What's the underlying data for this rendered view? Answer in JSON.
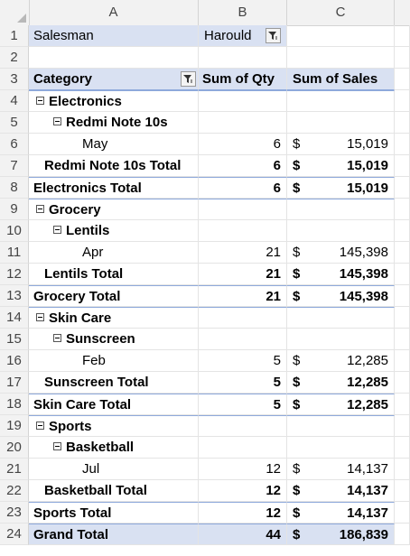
{
  "columns": [
    "A",
    "B",
    "C"
  ],
  "row_numbers": [
    "1",
    "2",
    "3",
    "4",
    "5",
    "6",
    "7",
    "8",
    "9",
    "10",
    "11",
    "12",
    "13",
    "14",
    "15",
    "16",
    "17",
    "18",
    "19",
    "20",
    "21",
    "22",
    "23",
    "24"
  ],
  "filter": {
    "label": "Salesman",
    "value": "Harould"
  },
  "headers": {
    "category": "Category",
    "qty": "Sum of Qty",
    "sales": "Sum of Sales"
  },
  "currency": "$",
  "rows": [
    {
      "label": "Electronics",
      "qty": "",
      "sales": ""
    },
    {
      "label": "Redmi Note 10s",
      "qty": "",
      "sales": ""
    },
    {
      "label": "May",
      "qty": "6",
      "sales": "15,019"
    },
    {
      "label": "Redmi Note 10s  Total",
      "qty": "6",
      "sales": "15,019"
    },
    {
      "label": "Electronics Total",
      "qty": "6",
      "sales": "15,019"
    },
    {
      "label": "Grocery",
      "qty": "",
      "sales": ""
    },
    {
      "label": "Lentils",
      "qty": "",
      "sales": ""
    },
    {
      "label": "Apr",
      "qty": "21",
      "sales": "145,398"
    },
    {
      "label": "Lentils  Total",
      "qty": "21",
      "sales": "145,398"
    },
    {
      "label": "Grocery  Total",
      "qty": "21",
      "sales": "145,398"
    },
    {
      "label": "Skin Care",
      "qty": "",
      "sales": ""
    },
    {
      "label": "Sunscreen",
      "qty": "",
      "sales": ""
    },
    {
      "label": "Feb",
      "qty": "5",
      "sales": "12,285"
    },
    {
      "label": "Sunscreen  Total",
      "qty": "5",
      "sales": "12,285"
    },
    {
      "label": "Skin Care Total",
      "qty": "5",
      "sales": "12,285"
    },
    {
      "label": "Sports",
      "qty": "",
      "sales": ""
    },
    {
      "label": "Basketball",
      "qty": "",
      "sales": ""
    },
    {
      "label": "Jul",
      "qty": "12",
      "sales": "14,137"
    },
    {
      "label": "Basketball Total",
      "qty": "12",
      "sales": "14,137"
    },
    {
      "label": "Sports Total",
      "qty": "12",
      "sales": "14,137"
    },
    {
      "label": "Grand Total",
      "qty": "44",
      "sales": "186,839"
    }
  ],
  "icons": {
    "collapse": "minus-box-icon",
    "filter": "filter-icon"
  }
}
